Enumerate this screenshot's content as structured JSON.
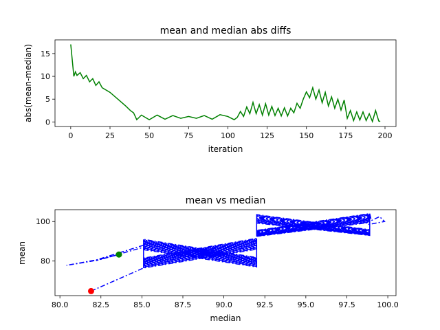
{
  "chart_data": [
    {
      "type": "line",
      "title": "mean and median abs diffs",
      "xlabel": "iteration",
      "ylabel": "abs(mean-median)",
      "xlim": [
        -10,
        207
      ],
      "ylim": [
        -1,
        18
      ],
      "xticks": [
        0,
        25,
        50,
        75,
        100,
        125,
        150,
        175,
        200
      ],
      "yticks": [
        0,
        5,
        10,
        15
      ],
      "grid": false,
      "color": "#008000",
      "x": [
        0,
        2,
        3,
        4,
        6,
        8,
        10,
        12,
        14,
        16,
        18,
        20,
        25,
        30,
        35,
        38,
        40,
        42,
        45,
        50,
        55,
        60,
        65,
        70,
        75,
        80,
        85,
        90,
        95,
        100,
        104,
        106,
        108,
        110,
        112,
        114,
        116,
        118,
        120,
        122,
        124,
        126,
        128,
        130,
        132,
        134,
        136,
        138,
        140,
        142,
        144,
        146,
        148,
        150,
        152,
        154,
        156,
        158,
        160,
        162,
        164,
        166,
        168,
        170,
        172,
        174,
        176,
        178,
        180,
        182,
        184,
        186,
        188,
        190,
        192,
        194,
        196,
        197
      ],
      "y": [
        17,
        10,
        11,
        10.2,
        10.8,
        9.5,
        10.2,
        8.8,
        9.5,
        8,
        8.8,
        7.5,
        6.5,
        5,
        3.5,
        2.5,
        2,
        0.5,
        1.5,
        0.5,
        1.5,
        0.6,
        1.4,
        0.8,
        1.2,
        0.8,
        1.4,
        0.6,
        1.6,
        1.2,
        0.5,
        1,
        2.3,
        1.2,
        3.3,
        1.8,
        4.3,
        1.8,
        3.8,
        1.5,
        4,
        1.5,
        3.4,
        1.4,
        3,
        1.3,
        3.1,
        1.3,
        3,
        2,
        4.1,
        3,
        5,
        6.6,
        5.3,
        7.5,
        5,
        7,
        4.2,
        6.5,
        3.5,
        5.5,
        3,
        5,
        2.6,
        4.8,
        0.8,
        2.5,
        0.3,
        2.2,
        0.4,
        2.2,
        0.3,
        1.8,
        0.1,
        2.5,
        0.2,
        0.1
      ]
    },
    {
      "type": "line",
      "title": "mean vs median",
      "xlabel": "median",
      "ylabel": "mean",
      "xlim": [
        79.7,
        100.5
      ],
      "ylim": [
        62.5,
        106
      ],
      "xticks": [
        "80.0",
        "82.5",
        "85.0",
        "87.5",
        "90.0",
        "92.5",
        "95.0",
        "97.5",
        "100.0"
      ],
      "yticks": [
        "80",
        "100"
      ],
      "grid": false,
      "color": "#0000ff",
      "linestyle": "dash-dot",
      "start_point": {
        "x": 81.9,
        "y": 64.8,
        "color": "#ff0000"
      },
      "end_point": {
        "x": 83.6,
        "y": 83.3,
        "color": "#008000"
      },
      "band_regions": [
        {
          "x_from": 85.1,
          "x_to": 92.0,
          "y_low_from": 76.5,
          "y_low_to": 81.5,
          "y_high_from": 86.0,
          "y_high_to": 91.5
        },
        {
          "x_from": 92.0,
          "x_to": 98.9,
          "y_low_from": 92.5,
          "y_low_to": 95.5,
          "y_high_from": 99.5,
          "y_high_to": 104.0
        }
      ]
    }
  ]
}
